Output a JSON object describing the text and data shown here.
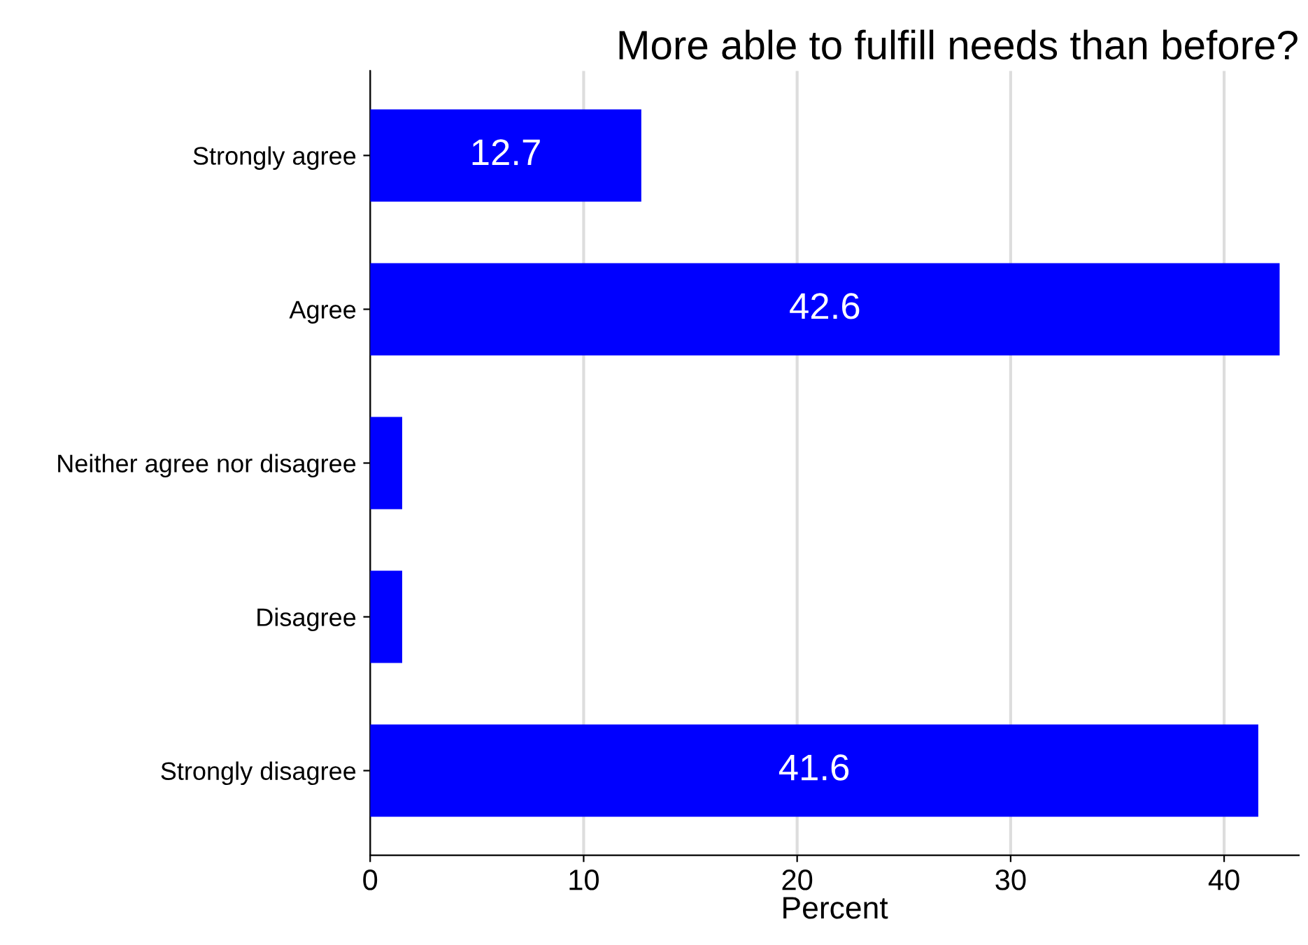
{
  "chart_data": {
    "type": "bar",
    "orientation": "horizontal",
    "title": "More able to fulfill needs than before?",
    "xlabel": "Percent",
    "categories": [
      "Strongly agree",
      "Agree",
      "Neither agree nor disagree",
      "Disagree",
      "Strongly disagree"
    ],
    "values": [
      12.7,
      42.6,
      1.5,
      1.5,
      41.6
    ],
    "value_labels": [
      "12.7",
      "42.6",
      null,
      null,
      "41.6"
    ],
    "color": "#0000ff",
    "xlim": [
      0,
      43.5
    ],
    "xticks": [
      0,
      10,
      20,
      30,
      40
    ],
    "grid": "x",
    "legend": false
  }
}
